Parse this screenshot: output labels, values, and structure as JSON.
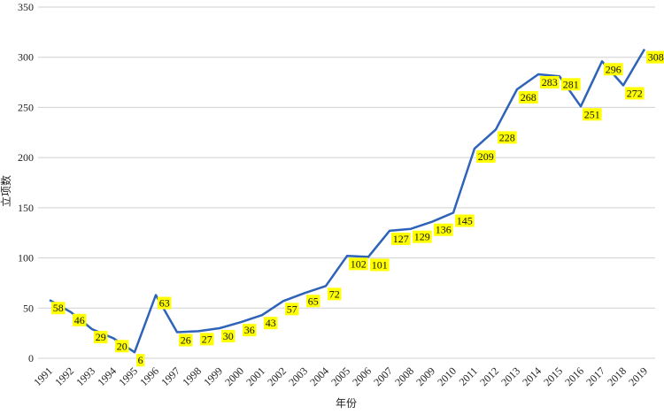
{
  "chart_data": {
    "type": "line",
    "xlabel": "年份",
    "ylabel": "立项数",
    "ylim": [
      0,
      350
    ],
    "yticks": [
      0,
      50,
      100,
      150,
      200,
      250,
      300,
      350
    ],
    "grid": true,
    "categories": [
      "1991",
      "1992",
      "1993",
      "1994",
      "1995",
      "1996",
      "1997",
      "1998",
      "1999",
      "2000",
      "2001",
      "2002",
      "2003",
      "2004",
      "2005",
      "2006",
      "2007",
      "2008",
      "2009",
      "2010",
      "2011",
      "2012",
      "2013",
      "2014",
      "2015",
      "2016",
      "2017",
      "2018",
      "2019"
    ],
    "series": [
      {
        "color": "#2e63b8",
        "values": [
          58,
          46,
          29,
          20,
          6,
          63,
          26,
          27,
          30,
          36,
          43,
          57,
          65,
          72,
          102,
          101,
          127,
          129,
          136,
          145,
          209,
          228,
          268,
          283,
          281,
          251,
          296,
          272,
          308
        ]
      }
    ],
    "data_label_bg": "#ffff00"
  }
}
